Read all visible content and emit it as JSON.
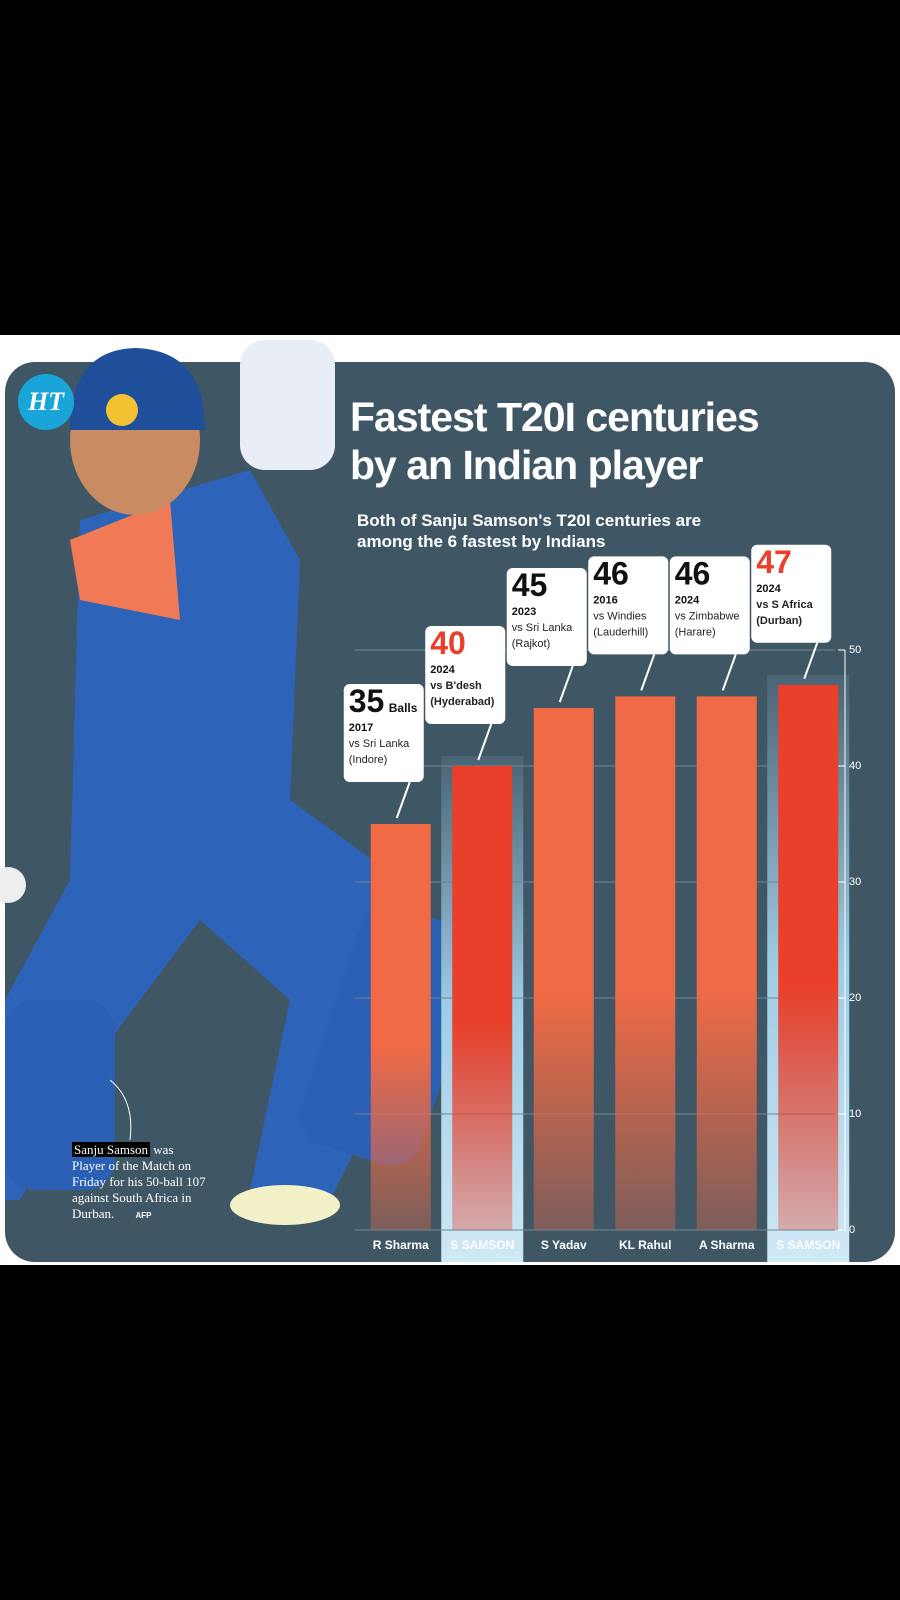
{
  "logo": "HT",
  "chart_data": {
    "type": "bar",
    "title": [
      "Fastest T20I centuries",
      "by an Indian player"
    ],
    "subtitle": [
      "Both of Sanju Samson's T20I centuries are",
      "among the 6 fastest by Indians"
    ],
    "categories": [
      "R Sharma",
      "S SAMSON",
      "S Yadav",
      "KL Rahul",
      "A Sharma",
      "S SAMSON"
    ],
    "values": [
      35,
      40,
      45,
      46,
      46,
      47
    ],
    "unit": "Balls",
    "annotations": [
      {
        "year": "2017",
        "opponent": "vs Sri Lanka",
        "venue": "(Indore)"
      },
      {
        "year": "2024",
        "opponent": "vs B'desh",
        "venue": "(Hyderabad)"
      },
      {
        "year": "2023",
        "opponent": "vs Sri Lanka",
        "venue": "(Rajkot)"
      },
      {
        "year": "2016",
        "opponent": "vs Windies",
        "venue": "(Lauderhill)"
      },
      {
        "year": "2024",
        "opponent": "vs Zimbabwe",
        "venue": "(Harare)"
      },
      {
        "year": "2024",
        "opponent": "vs S Africa",
        "venue": "(Durban)"
      }
    ],
    "colors": [
      "#ef6a45",
      "#e8402a",
      "#ef6a45",
      "#ef6a45",
      "#ef6a45",
      "#e8402a"
    ],
    "highlight": [
      false,
      true,
      false,
      false,
      false,
      true
    ],
    "ylim": [
      0,
      50
    ],
    "yticks": [
      0,
      10,
      20,
      30,
      40,
      50
    ],
    "grid": true
  },
  "caption": {
    "name": "Sanju Samson",
    "text": "was Player of the Match on Friday for his 50-ball 107 against South Africa in Durban.",
    "credit": "AFP"
  }
}
